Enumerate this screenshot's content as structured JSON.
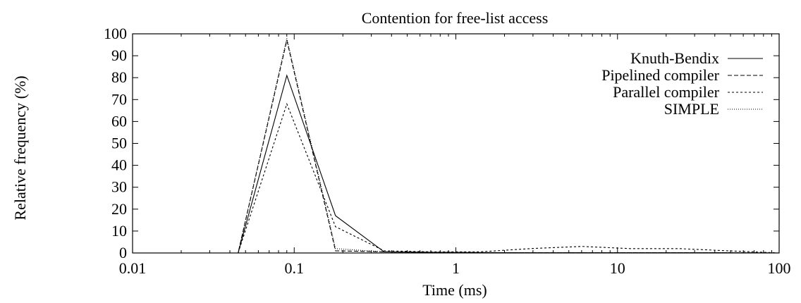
{
  "chart_data": {
    "type": "line",
    "title": "Contention for free-list access",
    "xlabel": "Time (ms)",
    "ylabel": "Relative frequency (%)",
    "xscale": "log",
    "xlim": [
      0.01,
      100
    ],
    "ylim": [
      0,
      100
    ],
    "grid": false,
    "legend_position": "top-right",
    "x_ticks": [
      0.01,
      0.1,
      1,
      10,
      100
    ],
    "x_tick_labels": [
      "0.01",
      "0.1",
      "1",
      "10",
      "100"
    ],
    "y_ticks": [
      0,
      10,
      20,
      30,
      40,
      50,
      60,
      70,
      80,
      90,
      100
    ],
    "y_tick_labels": [
      "0",
      "10",
      "20",
      "30",
      "40",
      "50",
      "60",
      "70",
      "80",
      "90",
      "100"
    ],
    "series": [
      {
        "name": "Knuth-Bendix",
        "style": "solid",
        "x": [
          0.01,
          0.045,
          0.09,
          0.18,
          0.36,
          0.72,
          1.4,
          2.9,
          6,
          12,
          24,
          48,
          100
        ],
        "y": [
          0,
          0,
          81,
          17,
          0.5,
          0.3,
          0.2,
          0.1,
          0.1,
          0.1,
          0.1,
          0.1,
          0
        ]
      },
      {
        "name": "Pipelined compiler",
        "style": "dashed",
        "x": [
          0.01,
          0.045,
          0.09,
          0.18,
          0.36,
          0.72,
          1.4,
          2.9,
          6,
          12,
          24,
          48,
          100
        ],
        "y": [
          0,
          0,
          97,
          1,
          0.5,
          0.3,
          0.2,
          0.1,
          0.1,
          0.1,
          0.1,
          0.1,
          0
        ]
      },
      {
        "name": "Parallel compiler",
        "style": "short-dashed",
        "x": [
          0.01,
          0.045,
          0.09,
          0.18,
          0.36,
          0.72,
          1.4,
          2.9,
          6,
          12,
          24,
          48,
          100
        ],
        "y": [
          0,
          0,
          68,
          12,
          1,
          0.5,
          0.5,
          2,
          3,
          2,
          2,
          1,
          0
        ]
      },
      {
        "name": "SIMPLE",
        "style": "dotted",
        "x": [
          0.01,
          0.045,
          0.09,
          0.18,
          0.36,
          0.72,
          1.4,
          2.9,
          6,
          12,
          24,
          48,
          100
        ],
        "y": [
          0,
          0,
          98,
          2,
          0.5,
          0.3,
          0.2,
          0.1,
          0.1,
          0.1,
          0.1,
          0.1,
          0
        ]
      }
    ]
  }
}
